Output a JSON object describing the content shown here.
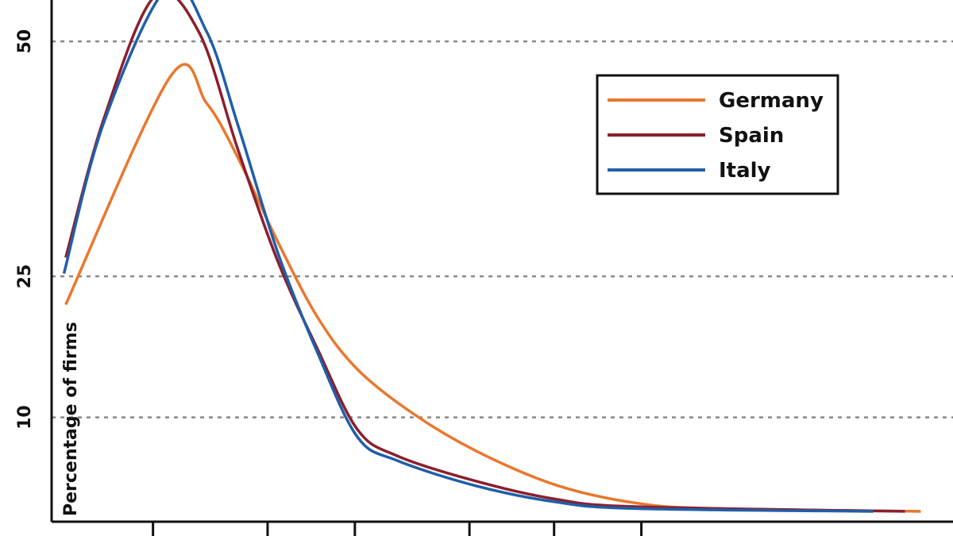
{
  "chart_data": {
    "type": "line",
    "y_label": "Percentage of firms",
    "xlim": [
      0,
      100
    ],
    "xticks": [
      11.5,
      24.5,
      34.4,
      47.4,
      57.0,
      66.9
    ],
    "ylim": [
      -1.1,
      54.4
    ],
    "yticks": [
      10,
      25,
      50
    ],
    "grid": true,
    "legend": "upper right",
    "series": [
      {
        "name": "Germany",
        "color": "#e8782e",
        "x": [
          1.6,
          13.5,
          17.6,
          21.2,
          25.7,
          30.2,
          34.7,
          41,
          48.2,
          57.2,
          66.2,
          75.2,
          98.6
        ],
        "values": [
          22.0,
          46.3,
          43.4,
          37.5,
          28.6,
          20.6,
          15.1,
          10.4,
          6.4,
          2.8,
          0.9,
          0.3,
          0
        ]
      },
      {
        "name": "Spain",
        "color": "#8b1f2e",
        "x": [
          1.6,
          5.9,
          11.7,
          16.7,
          21.2,
          25.7,
          30.2,
          34.7,
          39.2,
          48.2,
          57.2,
          66.2,
          96.8
        ],
        "values": [
          27.0,
          41.7,
          54.8,
          51.0,
          38.3,
          26.5,
          17.2,
          8.7,
          5.9,
          3.2,
          1.3,
          0.5,
          0
        ]
      },
      {
        "name": "Italy",
        "color": "#1f5fa8",
        "x": [
          1.4,
          5.9,
          13.1,
          17.6,
          21.2,
          25.7,
          30.2,
          34.7,
          39.2,
          48.2,
          57.2,
          66.2,
          93.2
        ],
        "values": [
          25.3,
          41.3,
          55.7,
          51.0,
          40.9,
          27.4,
          16.8,
          7.9,
          5.4,
          2.7,
          1.0,
          0.3,
          0
        ]
      }
    ]
  }
}
